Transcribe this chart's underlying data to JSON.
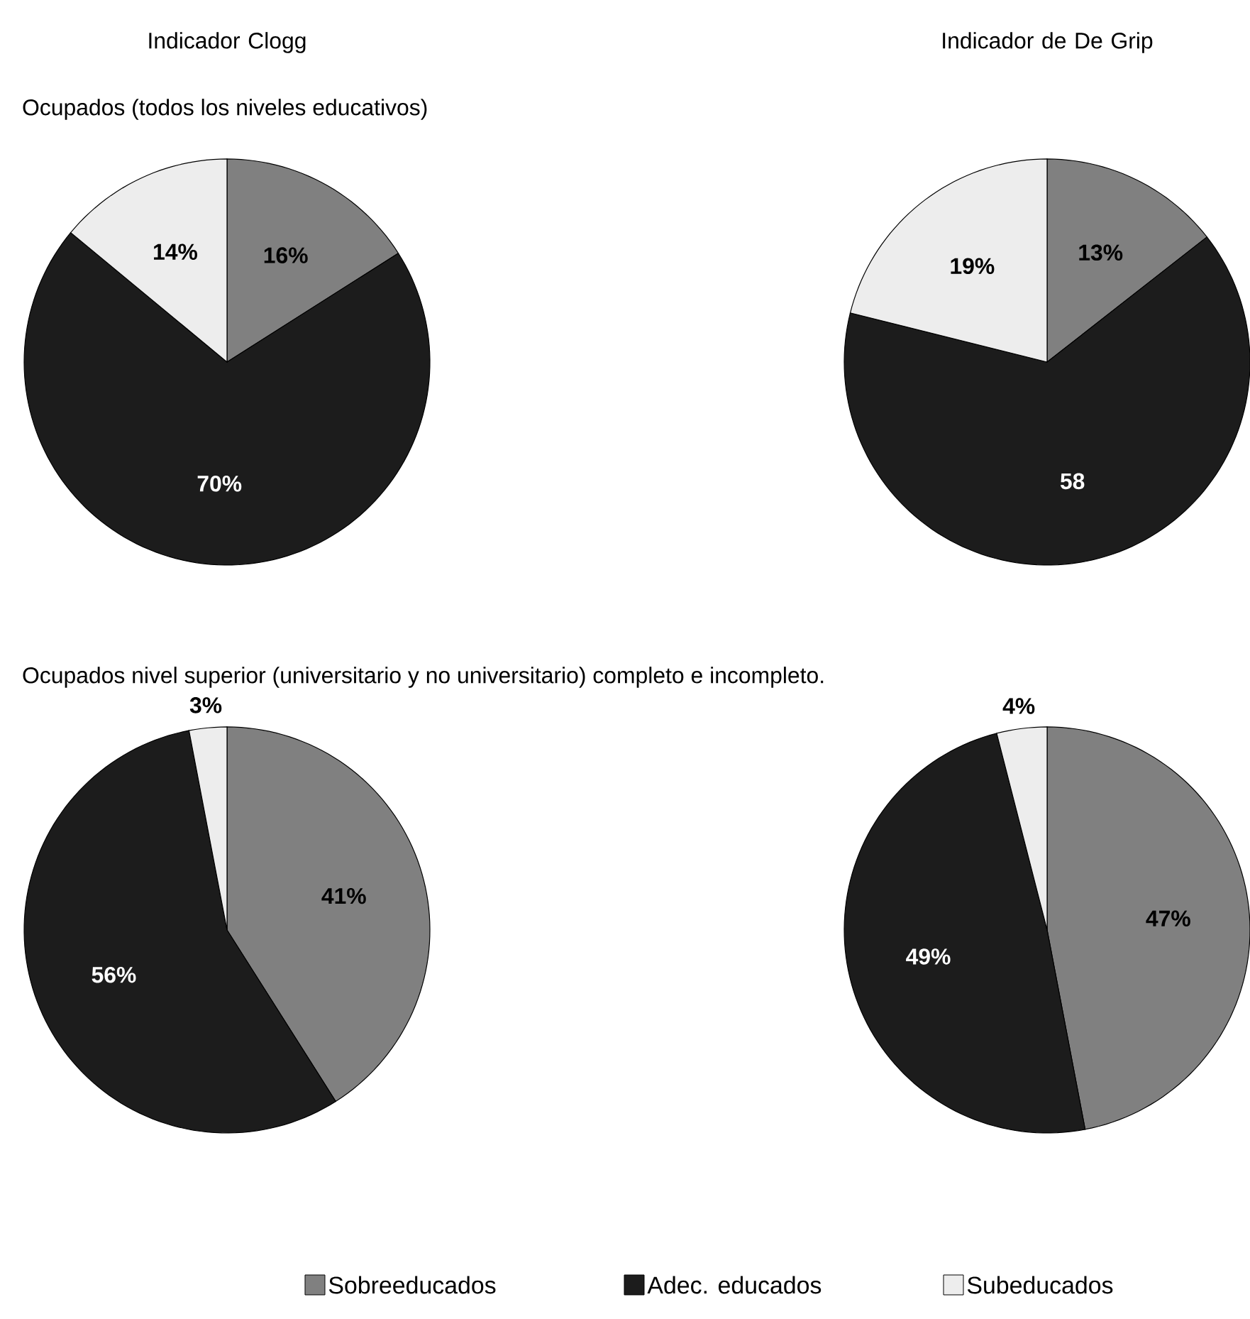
{
  "chart_data": [
    {
      "type": "pie",
      "title": "Indicador Clogg",
      "subtitle": "Ocupados (todos los niveles educativos)",
      "categories": [
        null,
        null,
        null
      ],
      "values": [
        16,
        70,
        14
      ],
      "colors": [
        "#808080",
        "#1c1c1c",
        "#ededed"
      ],
      "value_labels": [
        "16%",
        "70%",
        "14%"
      ]
    },
    {
      "type": "pie",
      "title": "Indicador de De Grip",
      "categories": [
        null,
        null,
        null
      ],
      "values": [
        13,
        58,
        19
      ],
      "colors": [
        "#808080",
        "#1c1c1c",
        "#ededed"
      ],
      "value_labels": [
        "13%",
        "58",
        "19%"
      ]
    },
    {
      "type": "pie",
      "subtitle": "Ocupados nivel superior (universitario y no universitario) completo e incompleto.",
      "categories": [
        null,
        null,
        null
      ],
      "values": [
        41,
        56,
        3
      ],
      "colors": [
        "#808080",
        "#1c1c1c",
        "#ededed"
      ],
      "value_labels": [
        "41%",
        "56%",
        "3%"
      ]
    },
    {
      "type": "pie",
      "categories": [
        "Sobreeducados",
        "Adec. educados",
        "Subeducados"
      ],
      "values": [
        47,
        49,
        4
      ],
      "colors": [
        "#808080",
        "#1c1c1c",
        "#ededed"
      ],
      "value_labels": [
        "47%",
        "49%",
        "4%"
      ],
      "legend": "bottom"
    }
  ]
}
